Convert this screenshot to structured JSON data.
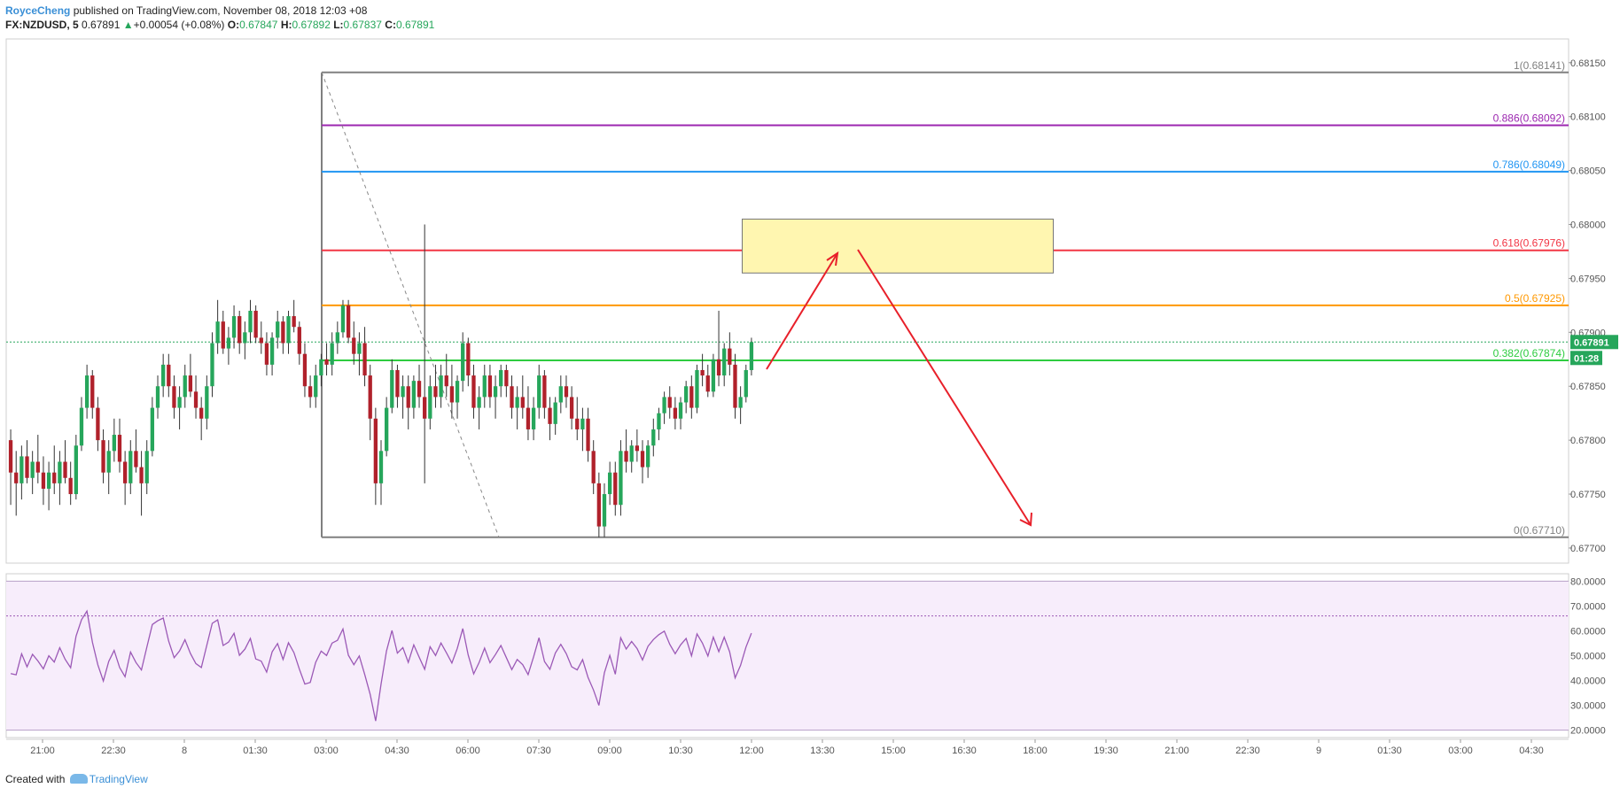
{
  "header": {
    "line1_author": "RoyceCheng",
    "line1_rest": " published on TradingView.com, November 08, 2018 12:03 +08",
    "symbol": "FX:NZDUSD, 5",
    "last": "0.67891",
    "change": "+0.00054 (+0.08%)",
    "o_label": "O:",
    "o": "0.67847",
    "h_label": "H:",
    "h": "0.67892",
    "l_label": "L:",
    "l": "0.67837",
    "c_label": "C:",
    "c": "0.67891"
  },
  "footer": {
    "created": "Created with",
    "brand": "TradingView"
  },
  "colors": {
    "up": "#26a65b",
    "down": "#b0212b",
    "wick": "#333333",
    "fib1": "#808080",
    "fib886": "#9c27b0",
    "fib786": "#2196f3",
    "fib618": "#f23645",
    "fib5": "#ff9800",
    "fib382": "#2ecc40",
    "fib0": "#808080",
    "rsi": "#9b59b6",
    "rsiBand": "#f7edfb",
    "zone": "#fff6b0",
    "arrow": "#e8202a"
  },
  "chart_data": {
    "type": "candlestick",
    "price_axis_ticks": [
      "0.68150",
      "0.68100",
      "0.68050",
      "0.68000",
      "0.67950",
      "0.67900",
      "0.67850",
      "0.67800",
      "0.67750",
      "0.67700"
    ],
    "ylim": [
      0.67686,
      0.68172
    ],
    "last_price_label": "0.67891",
    "countdown_label": "01:28",
    "time_axis_ticks": [
      "21:00",
      "22:30",
      "8",
      "01:30",
      "03:00",
      "04:30",
      "06:00",
      "07:30",
      "09:00",
      "10:30",
      "12:00",
      "13:30",
      "15:00",
      "16:30",
      "18:00",
      "19:30",
      "21:00",
      "22:30",
      "9",
      "01:30",
      "03:00",
      "04:30"
    ],
    "fibonacci": [
      {
        "label": "1(0.68141)",
        "level": 0.68141,
        "color_key": "fib1"
      },
      {
        "label": "0.886(0.68092)",
        "level": 0.68092,
        "color_key": "fib886"
      },
      {
        "label": "0.786(0.68049)",
        "level": 0.68049,
        "color_key": "fib786"
      },
      {
        "label": "0.618(0.67976)",
        "level": 0.67976,
        "color_key": "fib618"
      },
      {
        "label": "0.5(0.67925)",
        "level": 0.67925,
        "color_key": "fib5"
      },
      {
        "label": "0.382(0.67874)",
        "level": 0.67874,
        "color_key": "fib382"
      },
      {
        "label": "0(0.67710)",
        "level": 0.6771,
        "color_key": "fib0"
      }
    ],
    "zone": {
      "top": 0.68005,
      "bottom": 0.67955,
      "start_bar": 151,
      "end_bar": 216
    },
    "rsi": {
      "axis_ticks": [
        "80.0000",
        "70.0000",
        "60.0000",
        "50.0000",
        "40.0000",
        "30.0000",
        "20.0000"
      ],
      "ylim": [
        17,
        83
      ],
      "band": [
        20,
        80
      ],
      "last": 66
    },
    "candles": [
      [
        0.678,
        0.6781,
        0.6774,
        0.6777
      ],
      [
        0.6777,
        0.6779,
        0.6773,
        0.6776
      ],
      [
        0.6776,
        0.67795,
        0.67745,
        0.67785
      ],
      [
        0.67785,
        0.678,
        0.6776,
        0.67765
      ],
      [
        0.67765,
        0.6779,
        0.6775,
        0.6778
      ],
      [
        0.6778,
        0.67805,
        0.6776,
        0.6777
      ],
      [
        0.6777,
        0.67785,
        0.6774,
        0.67755
      ],
      [
        0.67755,
        0.6778,
        0.67735,
        0.6777
      ],
      [
        0.6777,
        0.67795,
        0.6775,
        0.6776
      ],
      [
        0.6776,
        0.6779,
        0.6774,
        0.6778
      ],
      [
        0.6778,
        0.678,
        0.6776,
        0.67765
      ],
      [
        0.67765,
        0.6778,
        0.6774,
        0.6775
      ],
      [
        0.6775,
        0.67805,
        0.67745,
        0.67795
      ],
      [
        0.67795,
        0.6784,
        0.6779,
        0.6783
      ],
      [
        0.6783,
        0.6787,
        0.6782,
        0.6786
      ],
      [
        0.6786,
        0.67865,
        0.6782,
        0.6783
      ],
      [
        0.6783,
        0.6784,
        0.6779,
        0.678
      ],
      [
        0.678,
        0.6781,
        0.6776,
        0.6777
      ],
      [
        0.6777,
        0.678,
        0.6775,
        0.6779
      ],
      [
        0.6779,
        0.6782,
        0.6778,
        0.67805
      ],
      [
        0.67805,
        0.6782,
        0.6777,
        0.6778
      ],
      [
        0.6778,
        0.6779,
        0.6774,
        0.6776
      ],
      [
        0.6776,
        0.678,
        0.6775,
        0.6779
      ],
      [
        0.6779,
        0.6781,
        0.6777,
        0.67775
      ],
      [
        0.67775,
        0.6779,
        0.6773,
        0.6776
      ],
      [
        0.6776,
        0.678,
        0.6775,
        0.6779
      ],
      [
        0.6779,
        0.6784,
        0.67785,
        0.6783
      ],
      [
        0.6783,
        0.6786,
        0.6782,
        0.6785
      ],
      [
        0.6785,
        0.6788,
        0.6784,
        0.6787
      ],
      [
        0.6787,
        0.6788,
        0.6784,
        0.6785
      ],
      [
        0.6785,
        0.6786,
        0.6782,
        0.6783
      ],
      [
        0.6783,
        0.6785,
        0.6781,
        0.6784
      ],
      [
        0.6784,
        0.6787,
        0.6783,
        0.6786
      ],
      [
        0.6786,
        0.6788,
        0.6784,
        0.67845
      ],
      [
        0.67845,
        0.6786,
        0.6782,
        0.6783
      ],
      [
        0.6783,
        0.6784,
        0.678,
        0.6782
      ],
      [
        0.6782,
        0.6786,
        0.6781,
        0.6785
      ],
      [
        0.6785,
        0.679,
        0.6784,
        0.6789
      ],
      [
        0.6789,
        0.6793,
        0.6788,
        0.6791
      ],
      [
        0.6791,
        0.6792,
        0.6788,
        0.67885
      ],
      [
        0.67885,
        0.67905,
        0.6787,
        0.67895
      ],
      [
        0.67895,
        0.67925,
        0.67885,
        0.67915
      ],
      [
        0.67915,
        0.6792,
        0.6788,
        0.6789
      ],
      [
        0.6789,
        0.6791,
        0.67875,
        0.679
      ],
      [
        0.679,
        0.6793,
        0.6789,
        0.6792
      ],
      [
        0.6792,
        0.67925,
        0.6789,
        0.67895
      ],
      [
        0.67895,
        0.6791,
        0.6788,
        0.6789
      ],
      [
        0.6789,
        0.679,
        0.6786,
        0.6787
      ],
      [
        0.6787,
        0.679,
        0.6786,
        0.67895
      ],
      [
        0.67895,
        0.6792,
        0.67885,
        0.6791
      ],
      [
        0.6791,
        0.67915,
        0.6788,
        0.6789
      ],
      [
        0.6789,
        0.6792,
        0.6788,
        0.67915
      ],
      [
        0.67915,
        0.6793,
        0.679,
        0.67905
      ],
      [
        0.67905,
        0.6791,
        0.6787,
        0.6788
      ],
      [
        0.6788,
        0.6789,
        0.6784,
        0.6785
      ],
      [
        0.6785,
        0.6786,
        0.6783,
        0.6784
      ],
      [
        0.6784,
        0.6787,
        0.6783,
        0.6786
      ],
      [
        0.6786,
        0.6788,
        0.6785,
        0.67875
      ],
      [
        0.67875,
        0.6789,
        0.6786,
        0.6787
      ],
      [
        0.6787,
        0.679,
        0.6786,
        0.6789
      ],
      [
        0.6789,
        0.6791,
        0.6788,
        0.679
      ],
      [
        0.679,
        0.6793,
        0.67895,
        0.67925
      ],
      [
        0.67925,
        0.6793,
        0.6789,
        0.67895
      ],
      [
        0.67895,
        0.6791,
        0.6787,
        0.6788
      ],
      [
        0.6788,
        0.679,
        0.6786,
        0.6789
      ],
      [
        0.6789,
        0.67905,
        0.6785,
        0.6786
      ],
      [
        0.6786,
        0.6787,
        0.678,
        0.6782
      ],
      [
        0.6782,
        0.6783,
        0.6774,
        0.6776
      ],
      [
        0.6776,
        0.678,
        0.6774,
        0.6779
      ],
      [
        0.6779,
        0.6784,
        0.67785,
        0.6783
      ],
      [
        0.6783,
        0.67875,
        0.67825,
        0.67865
      ],
      [
        0.67865,
        0.6787,
        0.6783,
        0.6784
      ],
      [
        0.6784,
        0.6786,
        0.6782,
        0.6785
      ],
      [
        0.6785,
        0.6786,
        0.6781,
        0.6783
      ],
      [
        0.6783,
        0.6786,
        0.6782,
        0.67855
      ],
      [
        0.67855,
        0.6787,
        0.6783,
        0.6784
      ],
      [
        0.6784,
        0.68,
        0.6776,
        0.6782
      ],
      [
        0.6782,
        0.6786,
        0.6781,
        0.6785
      ],
      [
        0.6785,
        0.6787,
        0.6783,
        0.6784
      ],
      [
        0.6784,
        0.6787,
        0.6783,
        0.6786
      ],
      [
        0.6786,
        0.6788,
        0.6784,
        0.6785
      ],
      [
        0.6785,
        0.6787,
        0.6782,
        0.67835
      ],
      [
        0.67835,
        0.6786,
        0.6782,
        0.67855
      ],
      [
        0.67855,
        0.679,
        0.67845,
        0.6789
      ],
      [
        0.6789,
        0.67895,
        0.6785,
        0.6786
      ],
      [
        0.6786,
        0.6787,
        0.6782,
        0.6783
      ],
      [
        0.6783,
        0.6785,
        0.6781,
        0.6784
      ],
      [
        0.6784,
        0.6787,
        0.6783,
        0.6786
      ],
      [
        0.6786,
        0.6787,
        0.6783,
        0.6784
      ],
      [
        0.6784,
        0.6786,
        0.6782,
        0.6785
      ],
      [
        0.6785,
        0.6787,
        0.6784,
        0.67865
      ],
      [
        0.67865,
        0.6787,
        0.6784,
        0.6785
      ],
      [
        0.6785,
        0.6786,
        0.6782,
        0.6783
      ],
      [
        0.6783,
        0.6785,
        0.6781,
        0.6784
      ],
      [
        0.6784,
        0.6786,
        0.6782,
        0.6783
      ],
      [
        0.6783,
        0.6785,
        0.678,
        0.6781
      ],
      [
        0.6781,
        0.6784,
        0.678,
        0.6783
      ],
      [
        0.6783,
        0.6787,
        0.6782,
        0.6786
      ],
      [
        0.6786,
        0.67865,
        0.6782,
        0.6783
      ],
      [
        0.6783,
        0.6784,
        0.678,
        0.67815
      ],
      [
        0.67815,
        0.6784,
        0.67805,
        0.67835
      ],
      [
        0.67835,
        0.6786,
        0.67825,
        0.6785
      ],
      [
        0.6785,
        0.6786,
        0.6783,
        0.6784
      ],
      [
        0.6784,
        0.6785,
        0.6781,
        0.6782
      ],
      [
        0.6782,
        0.6784,
        0.678,
        0.6781
      ],
      [
        0.6781,
        0.6783,
        0.6779,
        0.6782
      ],
      [
        0.6782,
        0.6783,
        0.6778,
        0.6779
      ],
      [
        0.6779,
        0.678,
        0.6775,
        0.6776
      ],
      [
        0.6776,
        0.6777,
        0.6771,
        0.6772
      ],
      [
        0.6772,
        0.6776,
        0.6771,
        0.6775
      ],
      [
        0.6775,
        0.6778,
        0.6774,
        0.6777
      ],
      [
        0.6777,
        0.6778,
        0.6773,
        0.6774
      ],
      [
        0.6774,
        0.678,
        0.6773,
        0.6779
      ],
      [
        0.6779,
        0.6781,
        0.6777,
        0.6778
      ],
      [
        0.6778,
        0.678,
        0.6777,
        0.67795
      ],
      [
        0.67795,
        0.6781,
        0.6778,
        0.6779
      ],
      [
        0.6779,
        0.678,
        0.6776,
        0.67775
      ],
      [
        0.67775,
        0.678,
        0.67765,
        0.67795
      ],
      [
        0.67795,
        0.6782,
        0.67785,
        0.6781
      ],
      [
        0.6781,
        0.6783,
        0.678,
        0.67825
      ],
      [
        0.67825,
        0.67845,
        0.67815,
        0.6784
      ],
      [
        0.6784,
        0.6785,
        0.6782,
        0.6783
      ],
      [
        0.6783,
        0.6784,
        0.6781,
        0.6782
      ],
      [
        0.6782,
        0.6784,
        0.6781,
        0.67835
      ],
      [
        0.67835,
        0.67855,
        0.67825,
        0.6785
      ],
      [
        0.6785,
        0.6786,
        0.6782,
        0.6783
      ],
      [
        0.6783,
        0.6787,
        0.67825,
        0.67865
      ],
      [
        0.67865,
        0.6788,
        0.6785,
        0.6786
      ],
      [
        0.6786,
        0.6787,
        0.6784,
        0.67845
      ],
      [
        0.67845,
        0.6788,
        0.6784,
        0.67875
      ],
      [
        0.67875,
        0.6792,
        0.6785,
        0.6786
      ],
      [
        0.6786,
        0.6789,
        0.6785,
        0.67885
      ],
      [
        0.67885,
        0.679,
        0.6786,
        0.6787
      ],
      [
        0.6787,
        0.6788,
        0.6782,
        0.6783
      ],
      [
        0.6783,
        0.6785,
        0.67815,
        0.6784
      ],
      [
        0.6784,
        0.6787,
        0.67835,
        0.67865
      ],
      [
        0.67865,
        0.67895,
        0.6786,
        0.67891
      ]
    ]
  }
}
